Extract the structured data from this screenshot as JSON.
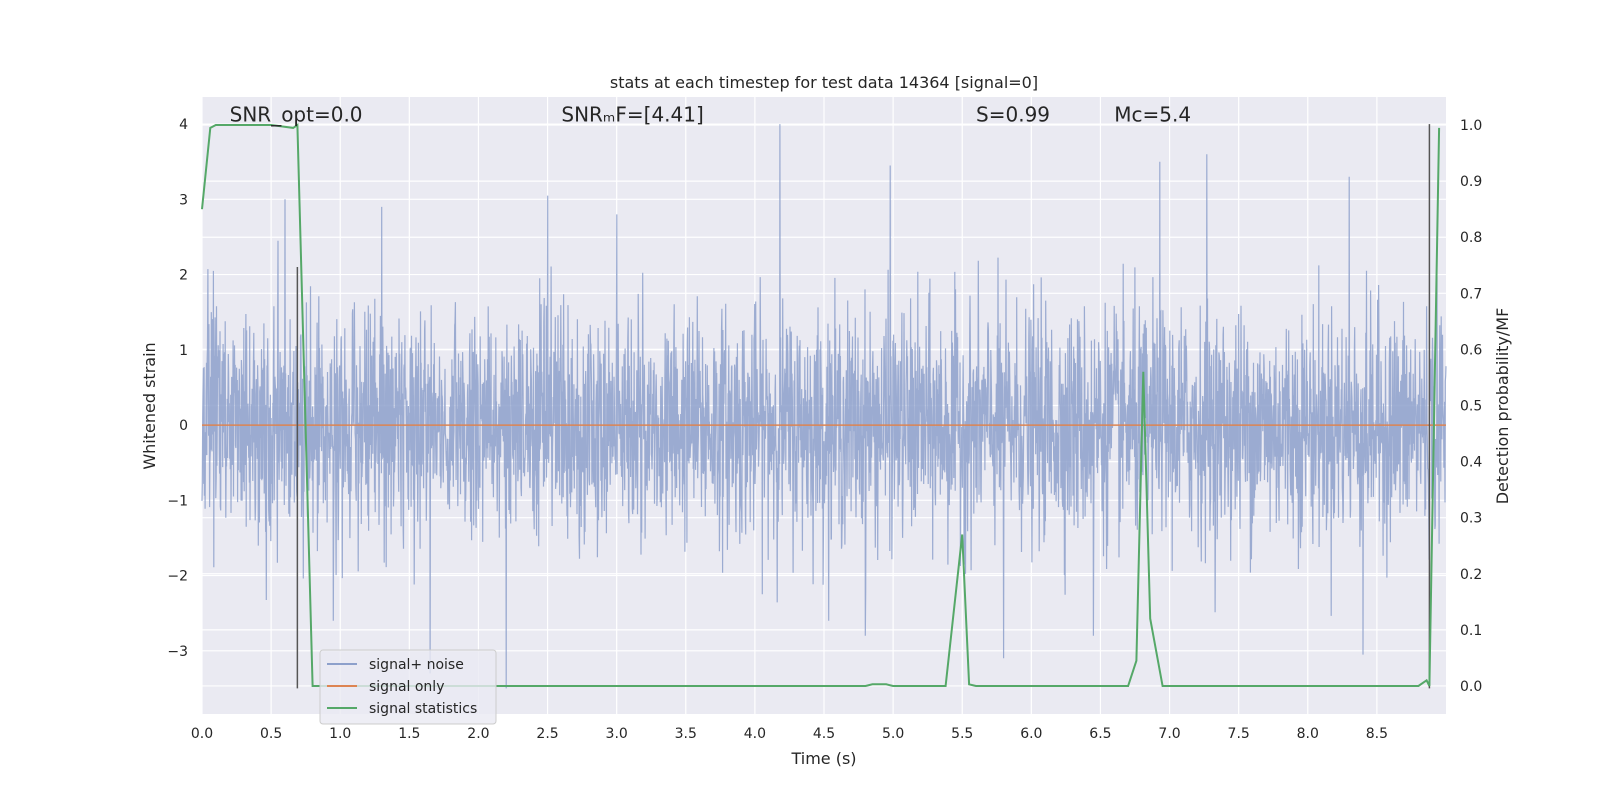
{
  "chart_data": {
    "type": "line",
    "title": "stats at each timestep for test data 14364 [signal=0]",
    "xlabel": "Time (s)",
    "ylabel": "Whitened strain",
    "ylabel_right": "Detection probability/MF",
    "xlim": [
      0.0,
      9.0
    ],
    "ylim": [
      -3.84,
      4.36
    ],
    "ylim_right": [
      -0.05,
      1.05
    ],
    "x_ticks": [
      "0.0",
      "0.5",
      "1.0",
      "1.5",
      "2.0",
      "2.5",
      "3.0",
      "3.5",
      "4.0",
      "4.5",
      "5.0",
      "5.5",
      "6.0",
      "6.5",
      "7.0",
      "7.5",
      "8.0",
      "8.5"
    ],
    "x_tick_values": [
      0.0,
      0.5,
      1.0,
      1.5,
      2.0,
      2.5,
      3.0,
      3.5,
      4.0,
      4.5,
      5.0,
      5.5,
      6.0,
      6.5,
      7.0,
      7.5,
      8.0,
      8.5
    ],
    "y_ticks": [
      "4",
      "3",
      "2",
      "1",
      "0",
      "−1",
      "−2",
      "−3"
    ],
    "y_tick_values": [
      4,
      3,
      2,
      1,
      0,
      -1,
      -2,
      -3
    ],
    "y_right_ticks": [
      "1.0",
      "0.9",
      "0.8",
      "0.7",
      "0.6",
      "0.5",
      "0.4",
      "0.3",
      "0.2",
      "0.1",
      "0.0"
    ],
    "y_right_tick_values": [
      1.0,
      0.9,
      0.8,
      0.7,
      0.6,
      0.5,
      0.4,
      0.3,
      0.2,
      0.1,
      0.0
    ],
    "grid": true,
    "legend_position": "bottom-left",
    "annotations": [
      {
        "id": "snr-opt",
        "text": "SNR_opt=0.0",
        "x": 0.2,
        "y": 4.1
      },
      {
        "id": "snr-mf",
        "text": "SNRₘF=[4.41]",
        "x": 2.6,
        "y": 4.1
      },
      {
        "id": "s-score",
        "text": "S=0.99",
        "x": 5.6,
        "y": 4.1
      },
      {
        "id": "mc",
        "text": "Mᴄ=5.4",
        "x": 6.6,
        "y": 4.1
      }
    ],
    "vertical_lines": [
      {
        "x": 0.69,
        "y0": -3.5,
        "y1": 2.1
      },
      {
        "x": 8.88,
        "y0": -3.5,
        "y1": 4.0
      }
    ],
    "series": [
      {
        "name": "signal+ noise",
        "color": "#8da0cb",
        "kind": "noise",
        "approx_std": 0.75,
        "peaks": [
          {
            "x": 4.18,
            "y": 4.0
          },
          {
            "x": 7.27,
            "y": 3.6
          },
          {
            "x": 4.98,
            "y": 3.45
          },
          {
            "x": 6.93,
            "y": 3.5
          },
          {
            "x": 2.5,
            "y": 3.05
          },
          {
            "x": 0.6,
            "y": 3.0
          },
          {
            "x": 1.3,
            "y": 2.9
          },
          {
            "x": 8.3,
            "y": 3.3
          },
          {
            "x": 0.55,
            "y": 2.45
          },
          {
            "x": 3.0,
            "y": 2.8
          },
          {
            "x": 1.65,
            "y": -3.3
          },
          {
            "x": 2.2,
            "y": -3.5
          },
          {
            "x": 4.8,
            "y": -2.8
          },
          {
            "x": 6.45,
            "y": -2.8
          },
          {
            "x": 8.4,
            "y": -3.05
          },
          {
            "x": 5.8,
            "y": -3.1
          },
          {
            "x": 0.95,
            "y": -2.6
          }
        ]
      },
      {
        "name": "signal only",
        "color": "#dd8452",
        "x": [
          0.0,
          9.0
        ],
        "y": [
          0.0,
          0.0
        ]
      },
      {
        "name": "signal statistics",
        "color": "#55a868",
        "axis": "right",
        "x": [
          0.0,
          0.06,
          0.1,
          0.15,
          0.3,
          0.5,
          0.66,
          0.69,
          0.8,
          0.9,
          2.0,
          4.8,
          4.85,
          4.95,
          5.0,
          5.3,
          5.38,
          5.5,
          5.55,
          5.6,
          6.5,
          6.7,
          6.76,
          6.81,
          6.86,
          6.95,
          7.0,
          8.0,
          8.8,
          8.86,
          8.88,
          8.95
        ],
        "y": [
          0.85,
          0.995,
          1.0,
          1.0,
          1.0,
          1.0,
          0.995,
          1.0,
          0.0,
          0.0,
          0.0,
          0.0,
          0.003,
          0.003,
          0.0,
          0.0,
          0.0,
          0.27,
          0.003,
          0.0,
          0.0,
          0.0,
          0.045,
          0.56,
          0.12,
          0.0,
          0.0,
          0.0,
          0.0,
          0.01,
          0.0,
          0.995
        ]
      }
    ]
  }
}
